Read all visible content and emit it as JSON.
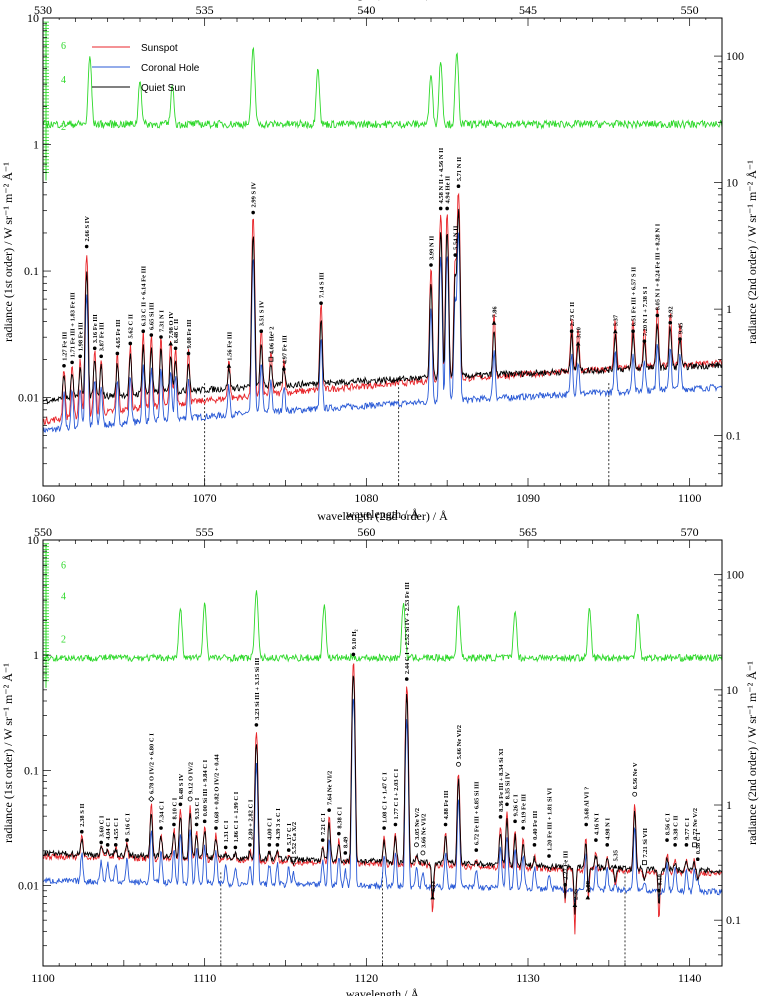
{
  "colors": {
    "sunspot": "#e8262b",
    "coronal_hole": "#2a5ad6",
    "quiet_sun": "#000000",
    "green": "#2ed82a",
    "frame": "#000000"
  },
  "legend": [
    {
      "name": "Sunspot",
      "color": "#e8262b"
    },
    {
      "name": "Coronal Hole",
      "color": "#2a5ad6"
    },
    {
      "name": "Quiet Sun",
      "color": "#000000"
    }
  ],
  "chart_data": [
    {
      "type": "line",
      "panel": "top",
      "xlabel": "wavelength  /  Å",
      "x2label": "wavelength (2nd order)  /  Å",
      "ylabel": "radiance (1st order)  /  W sr⁻¹ m⁻² Å⁻¹",
      "y2label": "radiance (2nd order)  /  W sr⁻¹ m⁻² Å⁻¹",
      "xlim": [
        1060,
        1102
      ],
      "x2lim": [
        530,
        551
      ],
      "ylim": [
        0.002,
        10
      ],
      "y2lim": [
        0.04,
        200
      ],
      "yscale": "log",
      "xticks": [
        "1060",
        "1070",
        "1080",
        "1090",
        "1100"
      ],
      "x2ticks": [
        "530",
        "535",
        "540",
        "545",
        "550"
      ],
      "yticks": [
        "0.01",
        "0.1",
        "1",
        "10"
      ],
      "y2ticks": [
        "0.1",
        "1",
        "10",
        "100"
      ],
      "green_ticks": [
        "2",
        "4",
        "6"
      ],
      "dashed_x": [
        1070,
        1082,
        1095
      ],
      "lines": [
        {
          "x": 1061.3,
          "y": 0.016,
          "m": "dot",
          "t": "1.27  Fe III"
        },
        {
          "x": 1061.8,
          "y": 0.017,
          "m": "dot",
          "t": "1.71  Fe III + 1.83 Fe III"
        },
        {
          "x": 1062.3,
          "y": 0.019,
          "m": "dot",
          "t": "1.98  Fe III"
        },
        {
          "x": 1062.7,
          "y": 0.14,
          "m": "dot",
          "t": "2.66  S IV"
        },
        {
          "x": 1063.2,
          "y": 0.022,
          "m": "dot",
          "t": "3.16  Fe III"
        },
        {
          "x": 1063.6,
          "y": 0.019,
          "m": "dot",
          "t": "3.87  Fe III"
        },
        {
          "x": 1064.6,
          "y": 0.02,
          "m": "dot",
          "t": "4.65  Fe III"
        },
        {
          "x": 1065.4,
          "y": 0.024,
          "m": "dot",
          "t": "5.62  C II"
        },
        {
          "x": 1066.2,
          "y": 0.03,
          "m": "dot",
          "t": "6.13 C II + 6.14 Fe III"
        },
        {
          "x": 1066.7,
          "y": 0.028,
          "m": "dot",
          "t": "6.65  Si III"
        },
        {
          "x": 1067.3,
          "y": 0.027,
          "m": "dot",
          "t": "7.31  N I"
        },
        {
          "x": 1067.9,
          "y": 0.024,
          "m": "tri",
          "t": "7.98  O IV"
        },
        {
          "x": 1068.2,
          "y": 0.022,
          "m": "dot",
          "t": "8.48  C II"
        },
        {
          "x": 1069.0,
          "y": 0.02,
          "m": "dot",
          "t": "9.08  Fe III"
        },
        {
          "x": 1071.5,
          "y": 0.016,
          "m": "tri",
          "t": "1.56  Fe III"
        },
        {
          "x": 1073.0,
          "y": 0.26,
          "m": "dot",
          "t": "2.99  S IV"
        },
        {
          "x": 1073.5,
          "y": 0.03,
          "m": "dot",
          "t": "3.51  S IV"
        },
        {
          "x": 1074.1,
          "y": 0.018,
          "m": "sq",
          "t": "4.06  He² 2"
        },
        {
          "x": 1074.9,
          "y": 0.015,
          "m": "dot",
          "t": "4.97  Fe III"
        },
        {
          "x": 1077.2,
          "y": 0.05,
          "m": "dot",
          "t": "7.14  S III"
        },
        {
          "x": 1084.0,
          "y": 0.1,
          "m": "dot",
          "t": "3.99  N II"
        },
        {
          "x": 1084.6,
          "y": 0.28,
          "m": "dot",
          "t": "4.58 N II + 4.56 N II"
        },
        {
          "x": 1085.0,
          "y": 0.28,
          "m": "dot",
          "t": "4.94  He II"
        },
        {
          "x": 1085.5,
          "y": 0.12,
          "m": "dot",
          "t": "5.54  N II"
        },
        {
          "x": 1085.7,
          "y": 0.42,
          "m": "dot",
          "t": "5.71  N II"
        },
        {
          "x": 1087.9,
          "y": 0.035,
          "m": "tri",
          "t": "7.86"
        },
        {
          "x": 1092.7,
          "y": 0.03,
          "m": "dot",
          "t": "2.73  C II"
        },
        {
          "x": 1093.1,
          "y": 0.024,
          "m": "tri",
          "t": "3.10"
        },
        {
          "x": 1095.4,
          "y": 0.03,
          "m": "tri",
          "t": "5.37"
        },
        {
          "x": 1096.5,
          "y": 0.03,
          "m": "dot",
          "t": "6.51 Fe III + 6.57 S II"
        },
        {
          "x": 1097.2,
          "y": 0.025,
          "m": "dot",
          "t": "7.20  N I + 7.38 S I"
        },
        {
          "x": 1098.0,
          "y": 0.04,
          "m": "dot",
          "t": "8.05 N I + 8.24 Fe III + 8.28 N I"
        },
        {
          "x": 1098.8,
          "y": 0.035,
          "m": "dot",
          "t": "8.92"
        },
        {
          "x": 1099.4,
          "y": 0.026,
          "m": "dot",
          "t": "9.45"
        }
      ]
    },
    {
      "type": "line",
      "panel": "bottom",
      "xlabel": "wavelength  /  Å",
      "x2label": "wavelength (2nd order)  /  Å",
      "ylabel": "radiance (1st order)  /  W sr⁻¹ m⁻² Å⁻¹",
      "y2label": "radiance (2nd order)  /  W sr⁻¹ m⁻² Å⁻¹",
      "xlim": [
        1100,
        1142
      ],
      "x2lim": [
        550,
        571
      ],
      "ylim": [
        0.002,
        10
      ],
      "y2lim": [
        0.04,
        200
      ],
      "yscale": "log",
      "xticks": [
        "1100",
        "1110",
        "1120",
        "1130",
        "1140"
      ],
      "x2ticks": [
        "550",
        "555",
        "560",
        "565",
        "570"
      ],
      "yticks": [
        "0.01",
        "0.1",
        "1",
        "10"
      ],
      "y2ticks": [
        "0.1",
        "1",
        "10",
        "100"
      ],
      "green_ticks": [
        "2",
        "4",
        "6"
      ],
      "dashed_x": [
        1111,
        1121,
        1136
      ],
      "lines": [
        {
          "x": 1102.4,
          "y": 0.026,
          "m": "dot",
          "t": "2.38  S II"
        },
        {
          "x": 1103.6,
          "y": 0.021,
          "m": "dot",
          "t": "3.60  C I"
        },
        {
          "x": 1104.0,
          "y": 0.02,
          "m": "dot",
          "t": "4.04  C I"
        },
        {
          "x": 1104.5,
          "y": 0.02,
          "m": "dot",
          "t": "4.55  C I"
        },
        {
          "x": 1105.2,
          "y": 0.022,
          "m": "dot",
          "t": "5.16  C I"
        },
        {
          "x": 1106.7,
          "y": 0.05,
          "m": "diam",
          "t": "6.78 O IV/2 + 6.80 C I"
        },
        {
          "x": 1107.3,
          "y": 0.028,
          "m": "dot",
          "t": "7.34  C I"
        },
        {
          "x": 1108.5,
          "y": 0.045,
          "m": "dot",
          "t": "8.48 S IV"
        },
        {
          "x": 1108.1,
          "y": 0.03,
          "m": "dot",
          "t": "8.10 C I"
        },
        {
          "x": 1109.1,
          "y": 0.05,
          "m": "circ",
          "t": "9.12 O IV/2"
        },
        {
          "x": 1109.5,
          "y": 0.03,
          "m": "dot",
          "t": "9.33 C I"
        },
        {
          "x": 1110.0,
          "y": 0.032,
          "m": "dot",
          "t": "0.00 Si III + 9.84 C I"
        },
        {
          "x": 1110.7,
          "y": 0.028,
          "m": "dot",
          "t": "0.68 + 0.82 O IV/2 + 0.44"
        },
        {
          "x": 1111.3,
          "y": 0.019,
          "m": "dot",
          "t": "1.31 C I"
        },
        {
          "x": 1111.9,
          "y": 0.019,
          "m": "dot",
          "t": "1.86 C I + 1.99 C I"
        },
        {
          "x": 1112.8,
          "y": 0.02,
          "m": "dot",
          "t": "2.80 + 2.82 C I"
        },
        {
          "x": 1113.2,
          "y": 0.22,
          "m": "dot",
          "t": "3.23 Si III + 3.15 Si III"
        },
        {
          "x": 1114.0,
          "y": 0.02,
          "m": "dot",
          "t": "4.00 C I"
        },
        {
          "x": 1114.5,
          "y": 0.02,
          "m": "dot",
          "t": "4.39 3 x C I"
        },
        {
          "x": 1115.2,
          "y": 0.018,
          "m": "dot",
          "t": "5.17 C I"
        },
        {
          "x": 1115.5,
          "y": 0.015,
          "m": "sq",
          "t": "5.52 Ca X/2"
        },
        {
          "x": 1117.3,
          "y": 0.022,
          "m": "dot",
          "t": "7.21 C I"
        },
        {
          "x": 1117.7,
          "y": 0.04,
          "m": "dot",
          "t": "7.64 Ne VI/2"
        },
        {
          "x": 1118.3,
          "y": 0.025,
          "m": "dot",
          "t": "8.38 C I"
        },
        {
          "x": 1118.7,
          "y": 0.017,
          "m": "dot",
          "t": "8.49"
        },
        {
          "x": 1119.2,
          "y": 0.9,
          "m": "dot",
          "t": "9.10 H₂"
        },
        {
          "x": 1121.1,
          "y": 0.028,
          "m": "dot",
          "t": "1.08 C I + 1.47 C I"
        },
        {
          "x": 1121.8,
          "y": 0.03,
          "m": "dot",
          "t": "1.77 C I + 2.03 C I"
        },
        {
          "x": 1122.5,
          "y": 0.55,
          "m": "dot",
          "t": "2.44 C I + 2.52 Si IV + 2.53 Fe III"
        },
        {
          "x": 1123.1,
          "y": 0.02,
          "m": "circ",
          "t": "3.05 Ne V/2"
        },
        {
          "x": 1123.5,
          "y": 0.017,
          "m": "circ",
          "t": "3.66 Ne VI/2"
        },
        {
          "x": 1124.1,
          "y": 0.007,
          "m": "tri",
          "t": "4.13"
        },
        {
          "x": 1124.9,
          "y": 0.03,
          "m": "dot",
          "t": "4.88 Fe III"
        },
        {
          "x": 1125.7,
          "y": 0.1,
          "m": "circ",
          "t": "5.66 Ne VI/2"
        },
        {
          "x": 1126.8,
          "y": 0.018,
          "m": "dot",
          "t": "6.72 Fe III + 6.85 Si III"
        },
        {
          "x": 1128.3,
          "y": 0.035,
          "m": "dot",
          "t": "8.36 Fe III + 8.34 Si XI"
        },
        {
          "x": 1128.7,
          "y": 0.045,
          "m": "dot",
          "t": "8.35 Si IV"
        },
        {
          "x": 1129.2,
          "y": 0.032,
          "m": "dot",
          "t": "9.26 C I"
        },
        {
          "x": 1129.7,
          "y": 0.028,
          "m": "dot",
          "t": "9.19 Fe III"
        },
        {
          "x": 1130.4,
          "y": 0.02,
          "m": "dot",
          "t": "0.40 Fe III"
        },
        {
          "x": 1131.3,
          "y": 0.016,
          "m": "dot",
          "t": "1.20 Fe III + 1.81 Si VI"
        },
        {
          "x": 1132.3,
          "y": 0.009,
          "m": "dot",
          "t": "2.27 Fe III"
        },
        {
          "x": 1132.9,
          "y": 0.006,
          "m": "tri",
          "t": "2.35"
        },
        {
          "x": 1133.7,
          "y": 0.007,
          "m": "tri",
          "t": "2.88"
        },
        {
          "x": 1133.6,
          "y": 0.03,
          "m": "dot",
          "t": "3.68 Al VI ?"
        },
        {
          "x": 1134.2,
          "y": 0.022,
          "m": "dot",
          "t": "4.16 N I"
        },
        {
          "x": 1134.9,
          "y": 0.02,
          "m": "dot",
          "t": "4.98 N I"
        },
        {
          "x": 1135.4,
          "y": 0.013,
          "m": "tri",
          "t": "5.35"
        },
        {
          "x": 1136.6,
          "y": 0.055,
          "m": "circ",
          "t": "6.56 Ne V"
        },
        {
          "x": 1137.2,
          "y": 0.014,
          "m": "sq",
          "t": "7.21 Si VII"
        },
        {
          "x": 1138.1,
          "y": 0.008,
          "m": "dot",
          "t": "8.10"
        },
        {
          "x": 1138.6,
          "y": 0.022,
          "m": "dot",
          "t": "8.56 C I"
        },
        {
          "x": 1139.1,
          "y": 0.02,
          "m": "dot",
          "t": "9.38 C II"
        },
        {
          "x": 1139.8,
          "y": 0.02,
          "m": "dot",
          "t": "9.77 C I"
        },
        {
          "x": 1140.5,
          "y": 0.015,
          "m": "dot",
          "t": "0.38 C I"
        },
        {
          "x": 1140.3,
          "y": 0.02,
          "m": "sq",
          "t": "0.72 Ne V/2"
        }
      ]
    }
  ]
}
